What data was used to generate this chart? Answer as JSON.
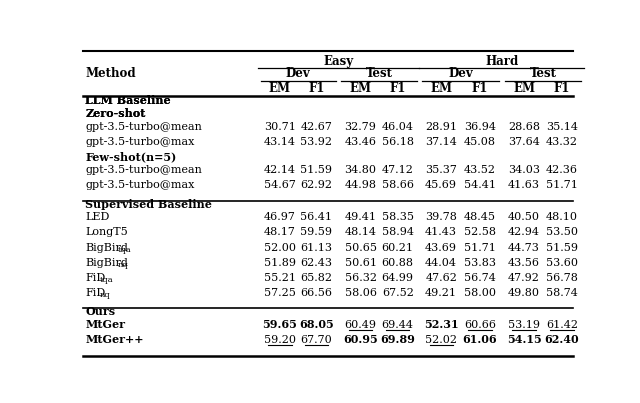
{
  "sections": [
    {
      "section_header": "LLM Baseline",
      "subsections": [
        {
          "sub_header": "Zero-shot",
          "rows": [
            {
              "method": "gpt-3.5-turbo@mean",
              "subscript": null,
              "base": null,
              "values": [
                "30.71",
                "42.67",
                "32.79",
                "46.04",
                "28.91",
                "36.94",
                "28.68",
                "35.14"
              ],
              "bold": [
                false,
                false,
                false,
                false,
                false,
                false,
                false,
                false
              ],
              "underline": [
                false,
                false,
                false,
                false,
                false,
                false,
                false,
                false
              ]
            },
            {
              "method": "gpt-3.5-turbo@max",
              "subscript": null,
              "base": null,
              "values": [
                "43.14",
                "53.92",
                "43.46",
                "56.18",
                "37.14",
                "45.08",
                "37.64",
                "43.32"
              ],
              "bold": [
                false,
                false,
                false,
                false,
                false,
                false,
                false,
                false
              ],
              "underline": [
                false,
                false,
                false,
                false,
                false,
                false,
                false,
                false
              ]
            }
          ]
        },
        {
          "sub_header": "Few-shot(n=5)",
          "rows": [
            {
              "method": "gpt-3.5-turbo@mean",
              "subscript": null,
              "base": null,
              "values": [
                "42.14",
                "51.59",
                "34.80",
                "47.12",
                "35.37",
                "43.52",
                "34.03",
                "42.36"
              ],
              "bold": [
                false,
                false,
                false,
                false,
                false,
                false,
                false,
                false
              ],
              "underline": [
                false,
                false,
                false,
                false,
                false,
                false,
                false,
                false
              ]
            },
            {
              "method": "gpt-3.5-turbo@max",
              "subscript": null,
              "base": null,
              "values": [
                "54.67",
                "62.92",
                "44.98",
                "58.66",
                "45.69",
                "54.41",
                "41.63",
                "51.71"
              ],
              "bold": [
                false,
                false,
                false,
                false,
                false,
                false,
                false,
                false
              ],
              "underline": [
                false,
                false,
                false,
                false,
                false,
                false,
                false,
                false
              ]
            }
          ]
        }
      ]
    },
    {
      "section_header": "Supervised Baseline",
      "subsections": [
        {
          "sub_header": null,
          "rows": [
            {
              "method": "LED",
              "subscript": null,
              "base": null,
              "values": [
                "46.97",
                "56.41",
                "49.41",
                "58.35",
                "39.78",
                "48.45",
                "40.50",
                "48.10"
              ],
              "bold": [
                false,
                false,
                false,
                false,
                false,
                false,
                false,
                false
              ],
              "underline": [
                false,
                false,
                false,
                false,
                false,
                false,
                false,
                false
              ]
            },
            {
              "method": "LongT5",
              "subscript": null,
              "base": null,
              "values": [
                "48.17",
                "59.59",
                "48.14",
                "58.94",
                "41.43",
                "52.58",
                "42.94",
                "53.50"
              ],
              "bold": [
                false,
                false,
                false,
                false,
                false,
                false,
                false,
                false
              ],
              "underline": [
                false,
                false,
                false,
                false,
                false,
                false,
                false,
                false
              ]
            },
            {
              "method": "BigBird",
              "subscript": "tqa",
              "base": "BigBird",
              "values": [
                "52.00",
                "61.13",
                "50.65",
                "60.21",
                "43.69",
                "51.71",
                "44.73",
                "51.59"
              ],
              "bold": [
                false,
                false,
                false,
                false,
                false,
                false,
                false,
                false
              ],
              "underline": [
                false,
                false,
                false,
                false,
                false,
                false,
                false,
                false
              ]
            },
            {
              "method": "BigBird",
              "subscript": "nq",
              "base": "BigBird",
              "values": [
                "51.89",
                "62.43",
                "50.61",
                "60.88",
                "44.04",
                "53.83",
                "43.56",
                "53.60"
              ],
              "bold": [
                false,
                false,
                false,
                false,
                false,
                false,
                false,
                false
              ],
              "underline": [
                false,
                false,
                false,
                false,
                false,
                false,
                false,
                false
              ]
            },
            {
              "method": "FiD",
              "subscript": "tqa",
              "base": "FiD",
              "values": [
                "55.21",
                "65.82",
                "56.32",
                "64.99",
                "47.62",
                "56.74",
                "47.92",
                "56.78"
              ],
              "bold": [
                false,
                false,
                false,
                false,
                false,
                false,
                false,
                false
              ],
              "underline": [
                false,
                false,
                false,
                false,
                false,
                false,
                false,
                false
              ]
            },
            {
              "method": "FiD",
              "subscript": "nq",
              "base": "FiD",
              "values": [
                "57.25",
                "66.56",
                "58.06",
                "67.52",
                "49.21",
                "58.00",
                "49.80",
                "58.74"
              ],
              "bold": [
                false,
                false,
                false,
                false,
                false,
                false,
                false,
                false
              ],
              "underline": [
                false,
                false,
                false,
                false,
                false,
                false,
                false,
                false
              ]
            }
          ]
        }
      ]
    },
    {
      "section_header": "Ours",
      "subsections": [
        {
          "sub_header": null,
          "rows": [
            {
              "method": "MtGer",
              "subscript": null,
              "base": null,
              "values": [
                "59.65",
                "68.05",
                "60.49",
                "69.44",
                "52.31",
                "60.66",
                "53.19",
                "61.42"
              ],
              "bold": [
                true,
                true,
                false,
                false,
                true,
                false,
                false,
                false
              ],
              "underline": [
                false,
                false,
                true,
                true,
                false,
                true,
                true,
                true
              ],
              "smallcaps": true
            },
            {
              "method": "MtGer++",
              "subscript": null,
              "base": null,
              "values": [
                "59.20",
                "67.70",
                "60.95",
                "69.89",
                "52.02",
                "61.06",
                "54.15",
                "62.40"
              ],
              "bold": [
                false,
                false,
                true,
                true,
                false,
                true,
                true,
                true
              ],
              "underline": [
                true,
                true,
                false,
                false,
                true,
                false,
                false,
                false
              ],
              "smallcaps": true
            }
          ]
        }
      ]
    }
  ]
}
